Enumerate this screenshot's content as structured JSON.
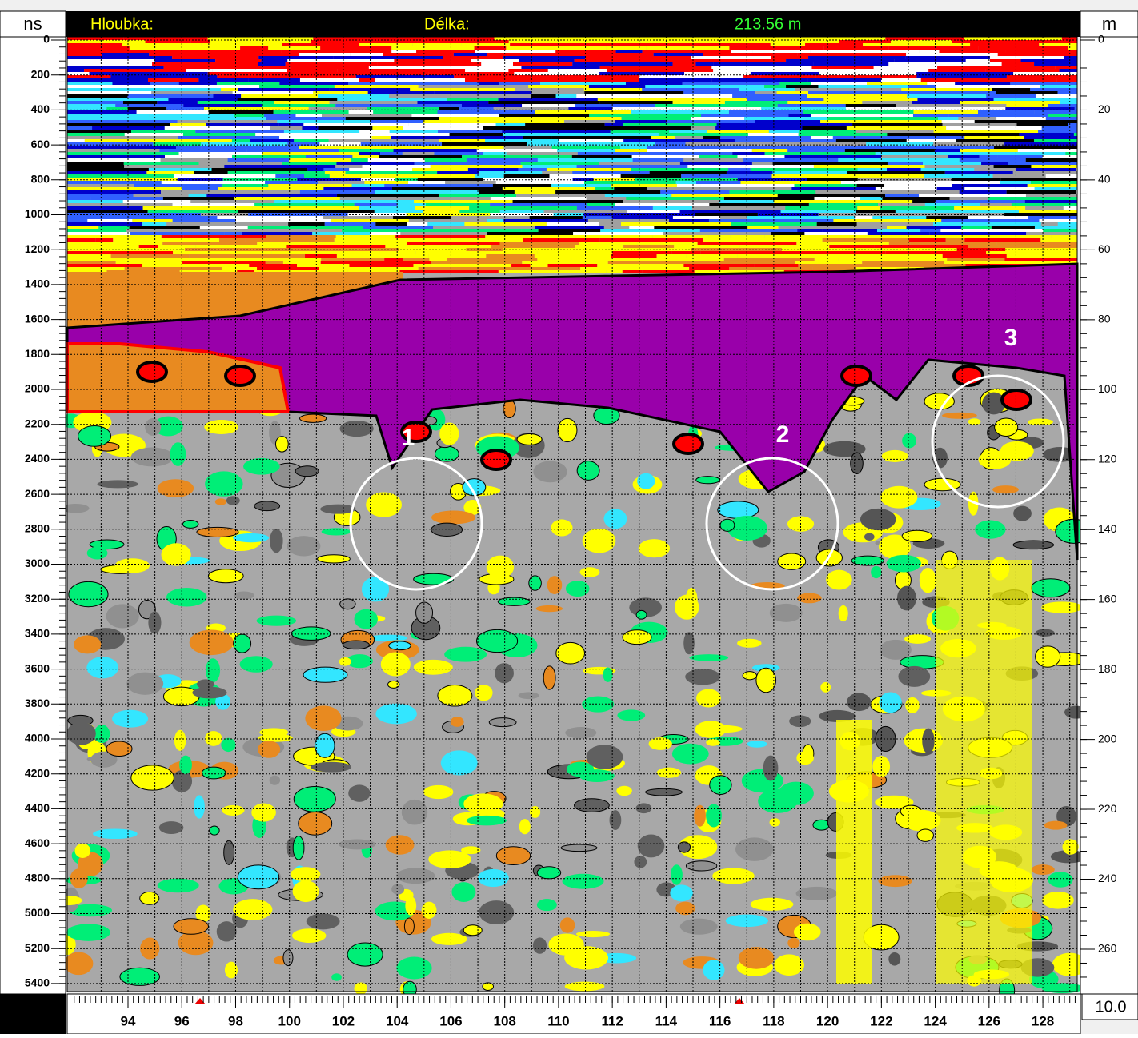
{
  "header": {
    "depth_label": "Hloubka:",
    "length_label": "Délka:",
    "length_value": "213.56 m"
  },
  "left_axis": {
    "unit": "ns",
    "ticks": [
      0,
      200,
      400,
      600,
      800,
      1000,
      1200,
      1400,
      1600,
      1800,
      2000,
      2200,
      2400,
      2600,
      2800,
      3000,
      3200,
      3400,
      3600,
      3800,
      4000,
      4200,
      4400,
      4600,
      4800,
      5000,
      5200,
      5400
    ]
  },
  "right_axis": {
    "unit": "m",
    "ticks": [
      0,
      20,
      40,
      60,
      80,
      100,
      120,
      140,
      160,
      180,
      200,
      220,
      240,
      260
    ]
  },
  "bottom_axis": {
    "ticks": [
      94,
      96,
      98,
      100,
      102,
      104,
      106,
      108,
      110,
      112,
      114,
      116,
      118,
      120,
      122,
      124,
      126,
      128
    ],
    "scale": "10.0"
  },
  "annotations": [
    "1",
    "2",
    "3"
  ]
}
